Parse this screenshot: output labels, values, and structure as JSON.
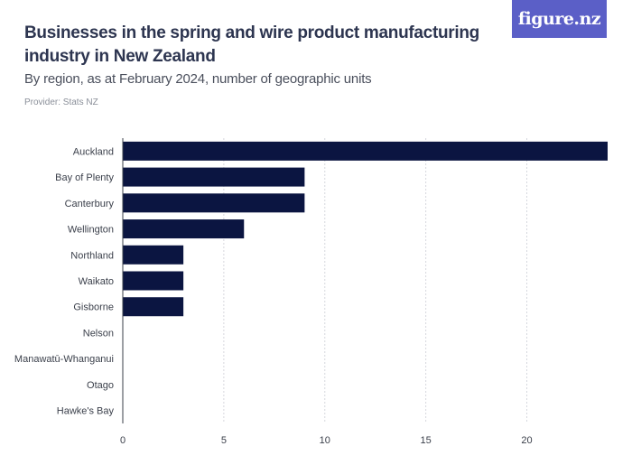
{
  "header": {
    "title": "Businesses in the spring and wire product manufacturing industry in New Zealand",
    "subtitle": "By region, as at February 2024, number of geographic units",
    "provider": "Provider: Stats NZ",
    "logo": "figure.nz"
  },
  "colors": {
    "bar": "#0b1541",
    "grid": "#d6d8de",
    "logo_bg": "#5b5fc7"
  },
  "chart_data": {
    "type": "bar",
    "orientation": "horizontal",
    "categories": [
      "Auckland",
      "Bay of Plenty",
      "Canterbury",
      "Wellington",
      "Northland",
      "Waikato",
      "Gisborne",
      "Nelson",
      "Manawatū-Whanganui",
      "Otago",
      "Hawke's Bay"
    ],
    "values": [
      24,
      9,
      9,
      6,
      3,
      3,
      3,
      0,
      0,
      0,
      0
    ],
    "xlim": [
      0,
      24
    ],
    "xticks": [
      0,
      5,
      10,
      15,
      20
    ],
    "grid": true,
    "xlabel": "",
    "ylabel": ""
  }
}
